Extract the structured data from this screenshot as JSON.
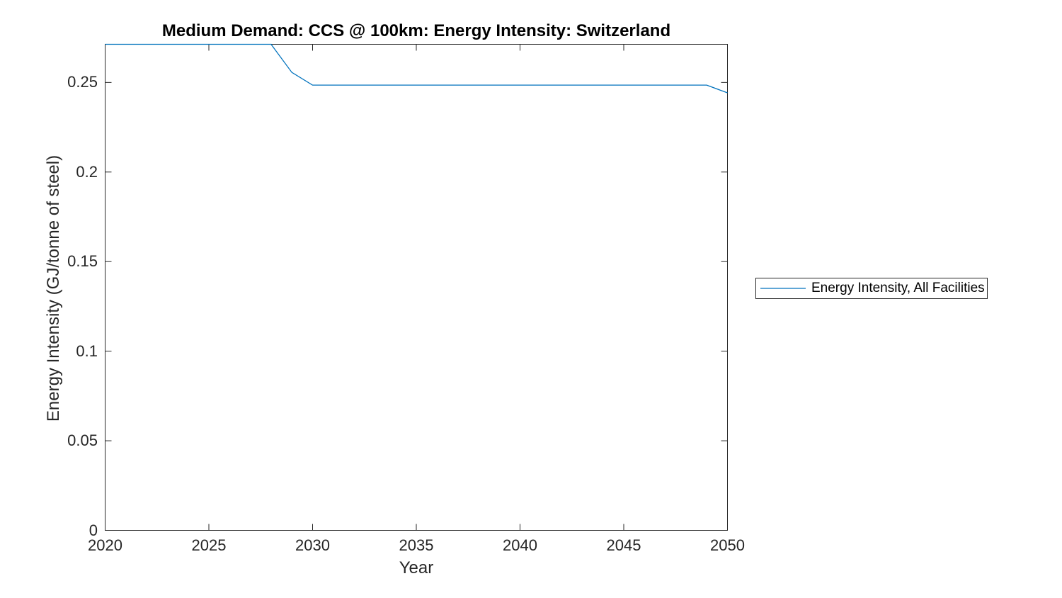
{
  "figure": {
    "background": "#ffffff",
    "axes_color": "#262626"
  },
  "chart_data": {
    "type": "line",
    "title": "Medium Demand: CCS @ 100km: Energy Intensity: Switzerland",
    "xlabel": "Year",
    "ylabel": "Energy Intensity (GJ/tonne of steel)",
    "xlim": [
      2020,
      2050
    ],
    "ylim": [
      0,
      0.2713
    ],
    "grid": false,
    "xticks": [
      {
        "value": 2020,
        "label": "2020"
      },
      {
        "value": 2025,
        "label": "2025"
      },
      {
        "value": 2030,
        "label": "2030"
      },
      {
        "value": 2035,
        "label": "2035"
      },
      {
        "value": 2040,
        "label": "2040"
      },
      {
        "value": 2045,
        "label": "2045"
      },
      {
        "value": 2050,
        "label": "2050"
      }
    ],
    "yticks": [
      {
        "value": 0,
        "label": "0"
      },
      {
        "value": 0.05,
        "label": "0.05"
      },
      {
        "value": 0.1,
        "label": "0.1"
      },
      {
        "value": 0.15,
        "label": "0.15"
      },
      {
        "value": 0.2,
        "label": "0.2"
      },
      {
        "value": 0.25,
        "label": "0.25"
      }
    ],
    "legend": {
      "position": "right-outside",
      "entries": [
        {
          "label": "Energy Intensity, All Facilities",
          "color": "#0072BD"
        }
      ]
    },
    "series": [
      {
        "name": "Energy Intensity, All Facilities",
        "color": "#0072BD",
        "x": [
          2020,
          2021,
          2022,
          2023,
          2024,
          2025,
          2026,
          2027,
          2028,
          2029,
          2030,
          2031,
          2032,
          2033,
          2034,
          2035,
          2036,
          2037,
          2038,
          2039,
          2040,
          2041,
          2042,
          2043,
          2044,
          2045,
          2046,
          2047,
          2048,
          2049,
          2050
        ],
        "y": [
          0.2713,
          0.2713,
          0.2713,
          0.2713,
          0.2713,
          0.2713,
          0.2713,
          0.2713,
          0.2713,
          0.2556,
          0.2485,
          0.2485,
          0.2485,
          0.2485,
          0.2485,
          0.2485,
          0.2485,
          0.2485,
          0.2485,
          0.2485,
          0.2485,
          0.2485,
          0.2485,
          0.2485,
          0.2485,
          0.2485,
          0.2485,
          0.2485,
          0.2485,
          0.2485,
          0.2442
        ]
      }
    ]
  }
}
